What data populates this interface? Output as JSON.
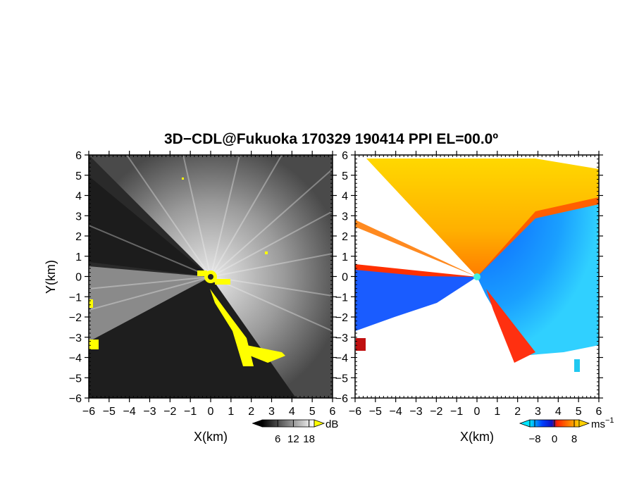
{
  "figure": {
    "title": "3D−CDL@Fukuoka 170329 190414 PPI EL=00.0º"
  },
  "chart_data": [
    {
      "type": "heatmap",
      "panel": "reflectivity",
      "xlabel": "X(km)",
      "ylabel": "Y(km)",
      "xlim": [
        -6,
        6
      ],
      "ylim": [
        -6,
        6
      ],
      "x_ticks": [
        "−6",
        "−5",
        "−4",
        "−3",
        "−2",
        "−1",
        "0",
        "1",
        "2",
        "3",
        "4",
        "5",
        "6"
      ],
      "y_ticks": [
        "6",
        "5",
        "4",
        "3",
        "2",
        "1",
        "0",
        "−1",
        "−2",
        "−3",
        "−4",
        "−5",
        "−6"
      ],
      "colorbar": {
        "unit": "dB",
        "ticks": [
          "6",
          "12",
          "18"
        ],
        "range": [
          0,
          20
        ],
        "colors": [
          "#000000",
          "#ffffff"
        ],
        "overflow_color": "#ffff00"
      },
      "grid": false
    },
    {
      "type": "heatmap",
      "panel": "doppler_velocity",
      "xlabel": "X(km)",
      "xlim": [
        -6,
        6
      ],
      "ylim": [
        -6,
        6
      ],
      "x_ticks": [
        "−6",
        "−5",
        "−4",
        "−3",
        "−2",
        "−1",
        "0",
        "1",
        "2",
        "3",
        "4",
        "5",
        "6"
      ],
      "y_ticks": [
        "6",
        "5",
        "4",
        "3",
        "2",
        "1",
        "0",
        "−1",
        "−2",
        "−3",
        "−4",
        "−5",
        "−6"
      ],
      "colorbar": {
        "unit": "ms",
        "unit_exponent": "−1",
        "ticks": [
          "−8",
          "0",
          "8"
        ],
        "range": [
          -10,
          10
        ],
        "colors": [
          "#00e5ff",
          "#0040ff",
          "#1010c0",
          "#ff2000",
          "#ff8000",
          "#ffd000"
        ]
      },
      "grid": false
    }
  ]
}
